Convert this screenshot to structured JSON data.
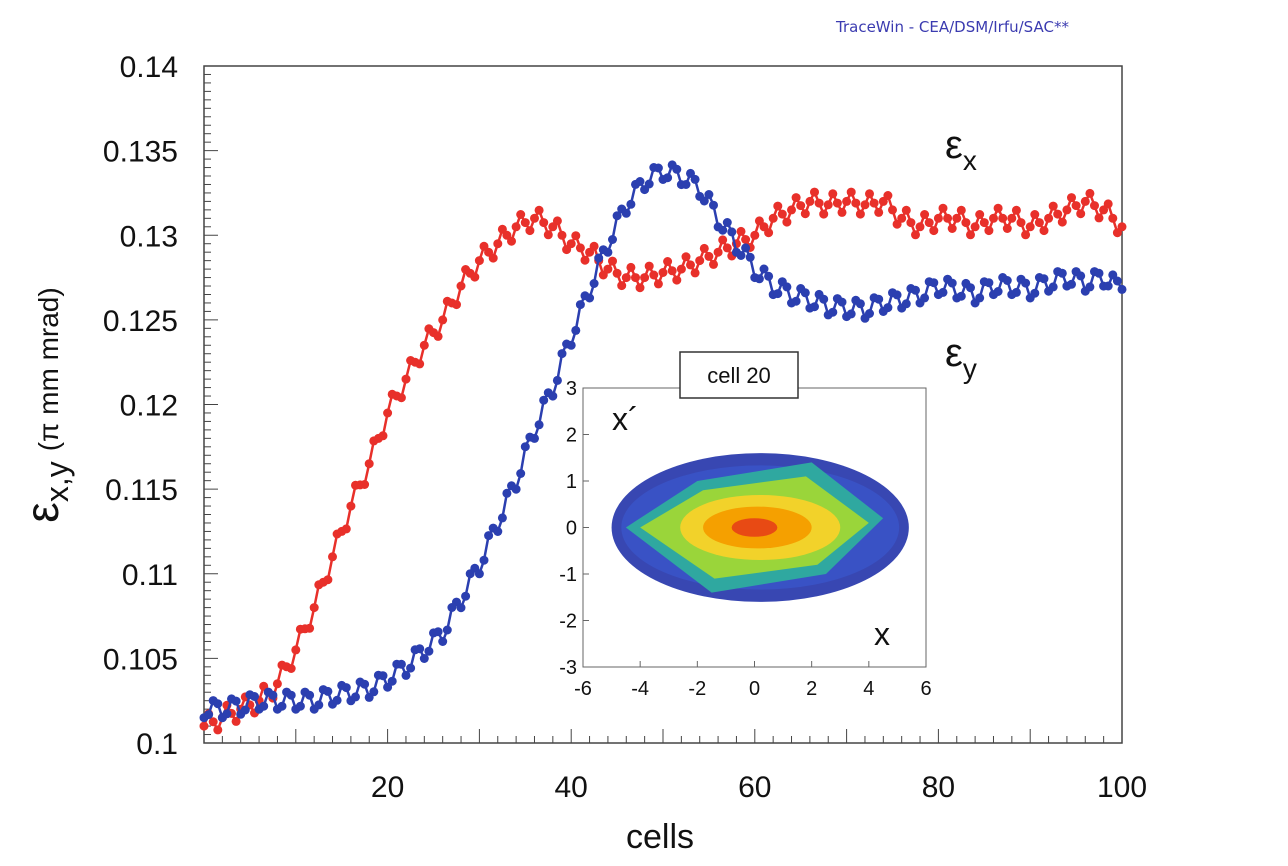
{
  "watermark": "TraceWin - CEA/DSM/Irfu/SAC**",
  "colors": {
    "ex": "#e8302a",
    "ey": "#2b3fb0",
    "inset_core": "#f5a000",
    "inset_mid": "#9ad53a",
    "inset_outer": "#2233aa"
  },
  "chart_data": [
    {
      "type": "line",
      "xlabel": "cells",
      "ylabel_main": "ε",
      "ylabel_sub": "x,y",
      "ylabel_unit": "(π mm mrad)",
      "xlim": [
        0,
        100
      ],
      "ylim": [
        0.1,
        0.14
      ],
      "x_ticks": [
        "20",
        "40",
        "60",
        "80",
        "100"
      ],
      "y_ticks": [
        "0.1",
        "0.105",
        "0.11",
        "0.115",
        "0.12",
        "0.125",
        "0.13",
        "0.135",
        "0.14"
      ],
      "grid": false,
      "series": [
        {
          "name": "ε",
          "name_sub": "x",
          "color": "#e8302a",
          "x": [
            0,
            2,
            4,
            6,
            8,
            10,
            12,
            14,
            16,
            18,
            20,
            22,
            24,
            26,
            28,
            30,
            32,
            34,
            36,
            38,
            40,
            42,
            44,
            46,
            48,
            50,
            52,
            54,
            56,
            58,
            60,
            62,
            64,
            66,
            68,
            70,
            72,
            74,
            76,
            78,
            80,
            82,
            84,
            86,
            88,
            90,
            92,
            94,
            96,
            98,
            100
          ],
          "y": [
            0.101,
            0.1015,
            0.102,
            0.1025,
            0.1035,
            0.1055,
            0.108,
            0.111,
            0.114,
            0.1165,
            0.1195,
            0.1215,
            0.1235,
            0.125,
            0.127,
            0.1285,
            0.1295,
            0.1305,
            0.131,
            0.1305,
            0.1295,
            0.129,
            0.128,
            0.1275,
            0.1275,
            0.1278,
            0.128,
            0.1285,
            0.129,
            0.1295,
            0.13,
            0.131,
            0.1315,
            0.132,
            0.1318,
            0.132,
            0.1318,
            0.132,
            0.131,
            0.1305,
            0.131,
            0.131,
            0.1305,
            0.131,
            0.131,
            0.1305,
            0.131,
            0.1315,
            0.132,
            0.1315,
            0.1305
          ]
        },
        {
          "name": "ε",
          "name_sub": "y",
          "color": "#2b3fb0",
          "x": [
            0,
            2,
            4,
            6,
            8,
            10,
            12,
            14,
            16,
            18,
            20,
            22,
            24,
            26,
            28,
            30,
            32,
            34,
            36,
            38,
            40,
            42,
            44,
            46,
            48,
            50,
            52,
            54,
            56,
            58,
            60,
            62,
            64,
            66,
            68,
            70,
            72,
            74,
            76,
            78,
            80,
            82,
            84,
            86,
            88,
            90,
            92,
            94,
            96,
            98,
            100
          ],
          "y": [
            0.102,
            0.102,
            0.1022,
            0.1025,
            0.1025,
            0.1025,
            0.1025,
            0.1028,
            0.103,
            0.1032,
            0.1038,
            0.1045,
            0.1055,
            0.1065,
            0.1085,
            0.1105,
            0.113,
            0.1155,
            0.1185,
            0.121,
            0.124,
            0.1268,
            0.1295,
            0.1318,
            0.1332,
            0.1338,
            0.1335,
            0.1328,
            0.131,
            0.1295,
            0.128,
            0.127,
            0.1265,
            0.1262,
            0.1258,
            0.1257,
            0.1256,
            0.126,
            0.1262,
            0.1265,
            0.127,
            0.1268,
            0.1265,
            0.127,
            0.127,
            0.1268,
            0.1272,
            0.1275,
            0.1272,
            0.1275,
            0.1268
          ]
        }
      ],
      "annotations": [
        {
          "text": "ε",
          "sub": "x"
        },
        {
          "text": "ε",
          "sub": "y"
        }
      ]
    },
    {
      "type": "scatter",
      "title": "cell 20",
      "xlabel": "x",
      "ylabel": "x´",
      "xlim": [
        -6,
        6
      ],
      "ylim": [
        -3,
        3
      ],
      "x_ticks": [
        "-6",
        "-4",
        "-2",
        "0",
        "2",
        "4",
        "6"
      ],
      "y_ticks": [
        "-3",
        "-2",
        "-1",
        "0",
        "1",
        "2",
        "3"
      ]
    }
  ]
}
